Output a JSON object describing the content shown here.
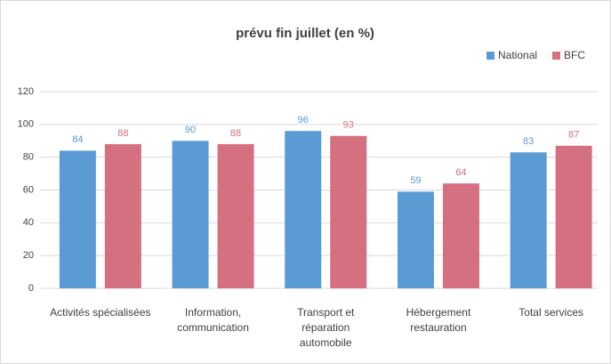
{
  "chart_data": {
    "type": "bar",
    "title": "prévu fin juillet (en %)",
    "categories": [
      "Activités spécialisées",
      "Information,\ncommunication",
      "Transport et\nréparation\nautomobile",
      "Hébergement\nrestauration",
      "Total services"
    ],
    "series": [
      {
        "name": "National",
        "color": "#5b9bd5",
        "values": [
          84,
          90,
          96,
          59,
          83
        ]
      },
      {
        "name": "BFC",
        "color": "#d47080",
        "values": [
          88,
          88,
          93,
          64,
          87
        ]
      }
    ],
    "ylim": [
      0,
      120
    ],
    "yticks": [
      0,
      20,
      40,
      60,
      80,
      100,
      120
    ],
    "grid": true,
    "legend": "top-right"
  }
}
